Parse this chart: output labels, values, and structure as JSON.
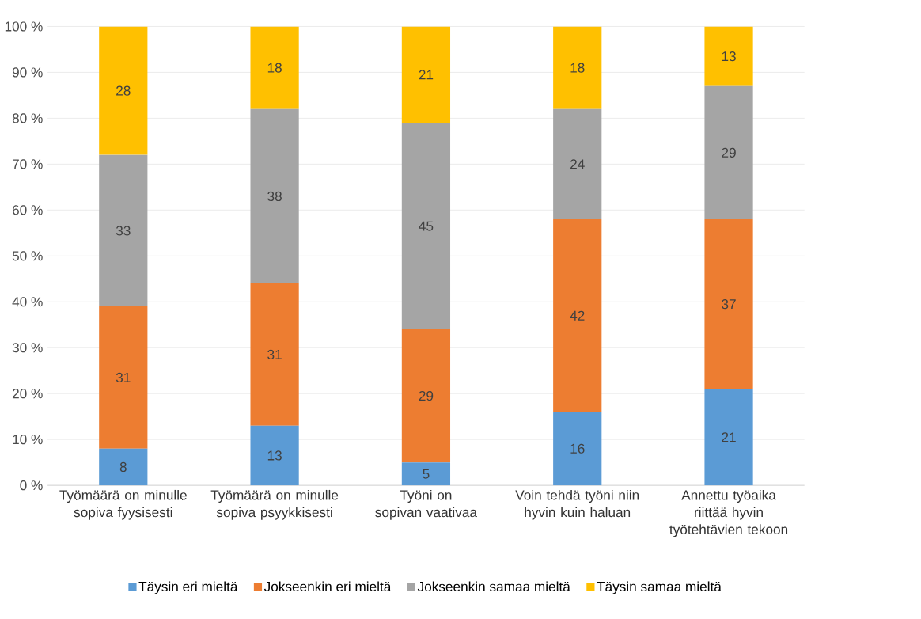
{
  "chart_data": {
    "type": "bar",
    "stacked": true,
    "data_labels": true,
    "grid": "y",
    "legend": "bottom",
    "categories": [
      "Työmäärä on minulle sopiva fyysisesti",
      "Työmäärä on minulle sopiva psyykkisesti",
      "Työni on sopivan vaativaa",
      "Voin tehdä työni niin hyvin kuin haluan",
      "Annettu työaika riittää hyvin työtehtävien tekoon"
    ],
    "ylim": [
      0,
      100
    ],
    "yticks": [
      {
        "value": 0,
        "label": "0 %"
      },
      {
        "value": 10,
        "label": "10 %"
      },
      {
        "value": 20,
        "label": "20 %"
      },
      {
        "value": 30,
        "label": "30 %"
      },
      {
        "value": 40,
        "label": "40 %"
      },
      {
        "value": 50,
        "label": "50 %"
      },
      {
        "value": 60,
        "label": "60 %"
      },
      {
        "value": 70,
        "label": "70 %"
      },
      {
        "value": 80,
        "label": "80 %"
      },
      {
        "value": 90,
        "label": "90 %"
      },
      {
        "value": 100,
        "label": "100 %"
      }
    ],
    "series": [
      {
        "name": "Täysin eri mieltä",
        "color": "#5b9bd5",
        "values": [
          8,
          13,
          5,
          16,
          21
        ]
      },
      {
        "name": "Jokseenkin eri mieltä",
        "color": "#ed7d31",
        "values": [
          31,
          31,
          29,
          42,
          37
        ]
      },
      {
        "name": "Jokseenkin samaa mieltä",
        "color": "#a5a5a5",
        "values": [
          33,
          38,
          45,
          24,
          29
        ]
      },
      {
        "name": "Täysin samaa mieltä",
        "color": "#ffc000",
        "values": [
          28,
          18,
          21,
          18,
          13
        ]
      }
    ]
  }
}
